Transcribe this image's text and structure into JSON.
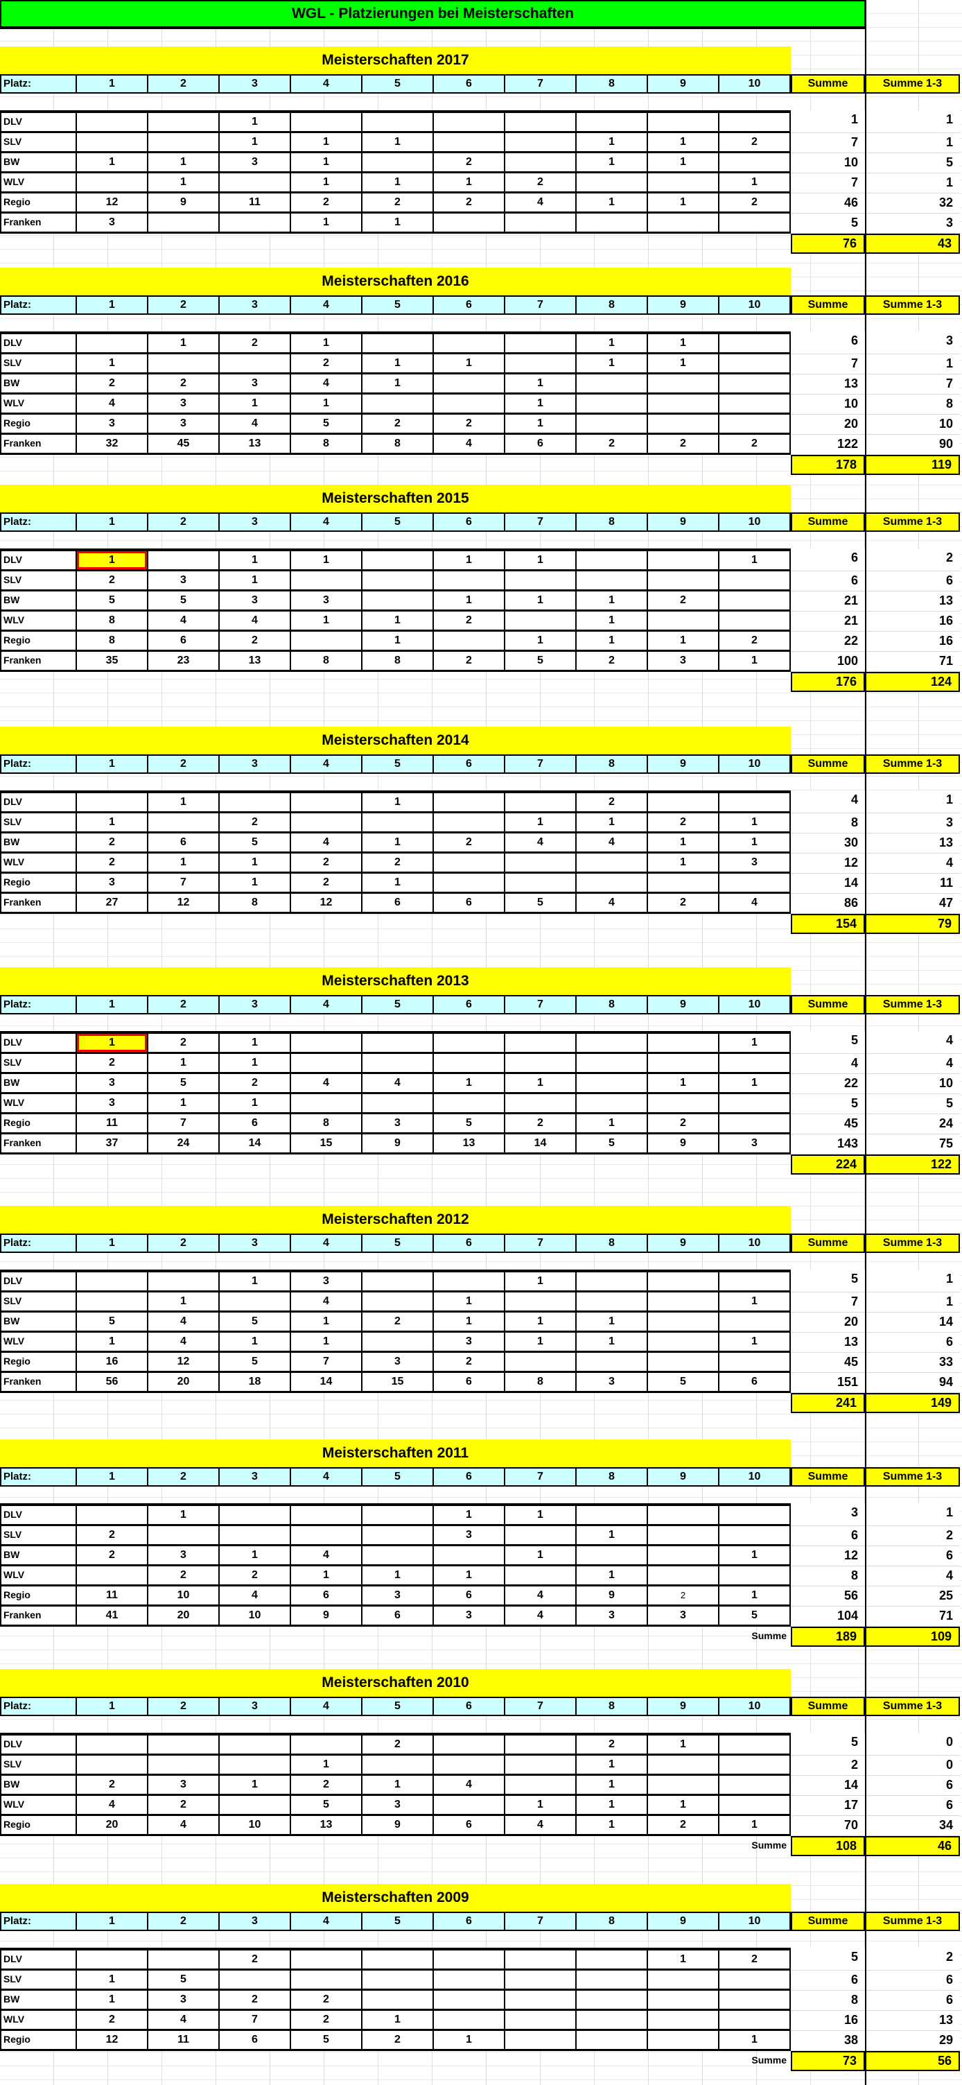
{
  "title": "WGL - Platzierungen bei Meisterschaften",
  "colors": {
    "title_green": "#00ff00",
    "banner_yellow": "#ffff00",
    "header_cyan": "#ccffff",
    "highlight_yellow": "#ffff00",
    "highlight_red": "#ff0000"
  },
  "header": {
    "platz_label": "Platz:",
    "places": [
      "1",
      "2",
      "3",
      "4",
      "5",
      "6",
      "7",
      "8",
      "9",
      "10"
    ],
    "summe_label": "Summe",
    "summe13_label": "Summe 1-3"
  },
  "tables": [
    {
      "year_title": "Meisterschaften 2017",
      "rows": [
        {
          "label": "DLV",
          "places": [
            "",
            "",
            "1",
            "",
            "",
            "",
            "",
            "",
            "",
            ""
          ],
          "summe": "1",
          "summe13": "1"
        },
        {
          "label": "SLV",
          "places": [
            "",
            "",
            "1",
            "1",
            "1",
            "",
            "",
            "1",
            "1",
            "2"
          ],
          "summe": "7",
          "summe13": "1"
        },
        {
          "label": "BW",
          "places": [
            "1",
            "1",
            "3",
            "1",
            "",
            "2",
            "",
            "1",
            "1",
            ""
          ],
          "summe": "10",
          "summe13": "5"
        },
        {
          "label": "WLV",
          "places": [
            "",
            "1",
            "",
            "1",
            "1",
            "1",
            "2",
            "",
            "",
            "1"
          ],
          "summe": "7",
          "summe13": "1"
        },
        {
          "label": "Regio",
          "places": [
            "12",
            "9",
            "11",
            "2",
            "2",
            "2",
            "4",
            "1",
            "1",
            "2"
          ],
          "summe": "46",
          "summe13": "32"
        },
        {
          "label": "Franken",
          "places": [
            "3",
            "",
            "",
            "1",
            "1",
            "",
            "",
            "",
            "",
            ""
          ],
          "summe": "5",
          "summe13": "3"
        }
      ],
      "total": {
        "label": "",
        "summe": "76",
        "summe13": "43"
      }
    },
    {
      "year_title": "Meisterschaften 2016",
      "rows": [
        {
          "label": "DLV",
          "places": [
            "",
            "1",
            "2",
            "1",
            "",
            "",
            "",
            "1",
            "1",
            ""
          ],
          "summe": "6",
          "summe13": "3"
        },
        {
          "label": "SLV",
          "places": [
            "1",
            "",
            "",
            "2",
            "1",
            "1",
            "",
            "1",
            "1",
            ""
          ],
          "summe": "7",
          "summe13": "1"
        },
        {
          "label": "BW",
          "places": [
            "2",
            "2",
            "3",
            "4",
            "1",
            "",
            "1",
            "",
            "",
            ""
          ],
          "summe": "13",
          "summe13": "7"
        },
        {
          "label": "WLV",
          "places": [
            "4",
            "3",
            "1",
            "1",
            "",
            "",
            "1",
            "",
            "",
            ""
          ],
          "summe": "10",
          "summe13": "8"
        },
        {
          "label": "Regio",
          "places": [
            "3",
            "3",
            "4",
            "5",
            "2",
            "2",
            "1",
            "",
            "",
            ""
          ],
          "summe": "20",
          "summe13": "10"
        },
        {
          "label": "Franken",
          "places": [
            "32",
            "45",
            "13",
            "8",
            "8",
            "4",
            "6",
            "2",
            "2",
            "2"
          ],
          "summe": "122",
          "summe13": "90"
        }
      ],
      "total": {
        "label": "",
        "summe": "178",
        "summe13": "119"
      }
    },
    {
      "year_title": "Meisterschaften 2015",
      "highlight_cells": [
        {
          "row": 0,
          "col": 0
        }
      ],
      "rows": [
        {
          "label": "DLV",
          "places": [
            "1",
            "",
            "1",
            "1",
            "",
            "1",
            "1",
            "",
            "",
            "1"
          ],
          "summe": "6",
          "summe13": "2"
        },
        {
          "label": "SLV",
          "places": [
            "2",
            "3",
            "1",
            "",
            "",
            "",
            "",
            "",
            "",
            ""
          ],
          "summe": "6",
          "summe13": "6"
        },
        {
          "label": "BW",
          "places": [
            "5",
            "5",
            "3",
            "3",
            "",
            "1",
            "1",
            "1",
            "2",
            ""
          ],
          "summe": "21",
          "summe13": "13"
        },
        {
          "label": "WLV",
          "places": [
            "8",
            "4",
            "4",
            "1",
            "1",
            "2",
            "",
            "1",
            "",
            ""
          ],
          "summe": "21",
          "summe13": "16"
        },
        {
          "label": "Regio",
          "places": [
            "8",
            "6",
            "2",
            "",
            "1",
            "",
            "1",
            "1",
            "1",
            "2"
          ],
          "summe": "22",
          "summe13": "16"
        },
        {
          "label": "Franken",
          "places": [
            "35",
            "23",
            "13",
            "8",
            "8",
            "2",
            "5",
            "2",
            "3",
            "1"
          ],
          "summe": "100",
          "summe13": "71"
        }
      ],
      "total": {
        "label": "",
        "summe": "176",
        "summe13": "124"
      }
    },
    {
      "year_title": "Meisterschaften 2014",
      "rows": [
        {
          "label": "DLV",
          "places": [
            "",
            "1",
            "",
            "",
            "1",
            "",
            "",
            "2",
            "",
            ""
          ],
          "summe": "4",
          "summe13": "1"
        },
        {
          "label": "SLV",
          "places": [
            "1",
            "",
            "2",
            "",
            "",
            "",
            "1",
            "1",
            "2",
            "1"
          ],
          "summe": "8",
          "summe13": "3"
        },
        {
          "label": "BW",
          "places": [
            "2",
            "6",
            "5",
            "4",
            "1",
            "2",
            "4",
            "4",
            "1",
            "1"
          ],
          "summe": "30",
          "summe13": "13"
        },
        {
          "label": "WLV",
          "places": [
            "2",
            "1",
            "1",
            "2",
            "2",
            "",
            "",
            "",
            "1",
            "3"
          ],
          "summe": "12",
          "summe13": "4"
        },
        {
          "label": "Regio",
          "places": [
            "3",
            "7",
            "1",
            "2",
            "1",
            "",
            "",
            "",
            "",
            ""
          ],
          "summe": "14",
          "summe13": "11"
        },
        {
          "label": "Franken",
          "places": [
            "27",
            "12",
            "8",
            "12",
            "6",
            "6",
            "5",
            "4",
            "2",
            "4"
          ],
          "summe": "86",
          "summe13": "47"
        }
      ],
      "total": {
        "label": "",
        "summe": "154",
        "summe13": "79"
      }
    },
    {
      "year_title": "Meisterschaften 2013",
      "highlight_cells": [
        {
          "row": 0,
          "col": 0
        }
      ],
      "rows": [
        {
          "label": "DLV",
          "places": [
            "1",
            "2",
            "1",
            "",
            "",
            "",
            "",
            "",
            "",
            "1"
          ],
          "summe": "5",
          "summe13": "4"
        },
        {
          "label": "SLV",
          "places": [
            "2",
            "1",
            "1",
            "",
            "",
            "",
            "",
            "",
            "",
            ""
          ],
          "summe": "4",
          "summe13": "4"
        },
        {
          "label": "BW",
          "places": [
            "3",
            "5",
            "2",
            "4",
            "4",
            "1",
            "1",
            "",
            "1",
            "1"
          ],
          "summe": "22",
          "summe13": "10"
        },
        {
          "label": "WLV",
          "places": [
            "3",
            "1",
            "1",
            "",
            "",
            "",
            "",
            "",
            "",
            ""
          ],
          "summe": "5",
          "summe13": "5"
        },
        {
          "label": "Regio",
          "places": [
            "11",
            "7",
            "6",
            "8",
            "3",
            "5",
            "2",
            "1",
            "2",
            ""
          ],
          "summe": "45",
          "summe13": "24"
        },
        {
          "label": "Franken",
          "places": [
            "37",
            "24",
            "14",
            "15",
            "9",
            "13",
            "14",
            "5",
            "9",
            "3"
          ],
          "summe": "143",
          "summe13": "75"
        }
      ],
      "total": {
        "label": "",
        "summe": "224",
        "summe13": "122"
      }
    },
    {
      "year_title": "Meisterschaften 2012",
      "rows": [
        {
          "label": "DLV",
          "places": [
            "",
            "",
            "1",
            "3",
            "",
            "",
            "1",
            "",
            "",
            ""
          ],
          "summe": "5",
          "summe13": "1"
        },
        {
          "label": "SLV",
          "places": [
            "",
            "1",
            "",
            "4",
            "",
            "1",
            "",
            "",
            "",
            "1"
          ],
          "summe": "7",
          "summe13": "1"
        },
        {
          "label": "BW",
          "places": [
            "5",
            "4",
            "5",
            "1",
            "2",
            "1",
            "1",
            "1",
            "",
            ""
          ],
          "summe": "20",
          "summe13": "14"
        },
        {
          "label": "WLV",
          "places": [
            "1",
            "4",
            "1",
            "1",
            "",
            "3",
            "1",
            "1",
            "",
            "1"
          ],
          "summe": "13",
          "summe13": "6"
        },
        {
          "label": "Regio",
          "places": [
            "16",
            "12",
            "5",
            "7",
            "3",
            "2",
            "",
            "",
            "",
            ""
          ],
          "summe": "45",
          "summe13": "33"
        },
        {
          "label": "Franken",
          "places": [
            "56",
            "20",
            "18",
            "14",
            "15",
            "6",
            "8",
            "3",
            "5",
            "6"
          ],
          "summe": "151",
          "summe13": "94"
        }
      ],
      "total": {
        "label": "",
        "summe": "241",
        "summe13": "149"
      }
    },
    {
      "year_title": "Meisterschaften 2011",
      "small_cells": [
        {
          "row": 4,
          "col": 8
        }
      ],
      "rows": [
        {
          "label": "DLV",
          "places": [
            "",
            "1",
            "",
            "",
            "",
            "1",
            "1",
            "",
            "",
            ""
          ],
          "summe": "3",
          "summe13": "1"
        },
        {
          "label": "SLV",
          "places": [
            "2",
            "",
            "",
            "",
            "",
            "3",
            "",
            "1",
            "",
            ""
          ],
          "summe": "6",
          "summe13": "2"
        },
        {
          "label": "BW",
          "places": [
            "2",
            "3",
            "1",
            "4",
            "",
            "",
            "1",
            "",
            "",
            "1"
          ],
          "summe": "12",
          "summe13": "6"
        },
        {
          "label": "WLV",
          "places": [
            "",
            "2",
            "2",
            "1",
            "1",
            "1",
            "",
            "1",
            "",
            ""
          ],
          "summe": "8",
          "summe13": "4"
        },
        {
          "label": "Regio",
          "places": [
            "11",
            "10",
            "4",
            "6",
            "3",
            "6",
            "4",
            "9",
            "2",
            "1"
          ],
          "summe": "56",
          "summe13": "25"
        },
        {
          "label": "Franken",
          "places": [
            "41",
            "20",
            "10",
            "9",
            "6",
            "3",
            "4",
            "3",
            "3",
            "5"
          ],
          "summe": "104",
          "summe13": "71"
        }
      ],
      "total": {
        "label": "Summe",
        "summe": "189",
        "summe13": "109"
      }
    },
    {
      "year_title": "Meisterschaften 2010",
      "rows": [
        {
          "label": "DLV",
          "places": [
            "",
            "",
            "",
            "",
            "2",
            "",
            "",
            "2",
            "1",
            ""
          ],
          "summe": "5",
          "summe13": "0"
        },
        {
          "label": "SLV",
          "places": [
            "",
            "",
            "",
            "1",
            "",
            "",
            "",
            "1",
            "",
            ""
          ],
          "summe": "2",
          "summe13": "0"
        },
        {
          "label": "BW",
          "places": [
            "2",
            "3",
            "1",
            "2",
            "1",
            "4",
            "",
            "1",
            "",
            ""
          ],
          "summe": "14",
          "summe13": "6"
        },
        {
          "label": "WLV",
          "places": [
            "4",
            "2",
            "",
            "5",
            "3",
            "",
            "1",
            "1",
            "1",
            ""
          ],
          "summe": "17",
          "summe13": "6"
        },
        {
          "label": "Regio",
          "places": [
            "20",
            "4",
            "10",
            "13",
            "9",
            "6",
            "4",
            "1",
            "2",
            "1"
          ],
          "summe": "70",
          "summe13": "34"
        }
      ],
      "total": {
        "label": "Summe",
        "summe": "108",
        "summe13": "46"
      }
    },
    {
      "year_title": "Meisterschaften 2009",
      "rows": [
        {
          "label": "DLV",
          "places": [
            "",
            "",
            "2",
            "",
            "",
            "",
            "",
            "",
            "1",
            "2"
          ],
          "summe": "5",
          "summe13": "2"
        },
        {
          "label": "SLV",
          "places": [
            "1",
            "5",
            "",
            "",
            "",
            "",
            "",
            "",
            "",
            ""
          ],
          "summe": "6",
          "summe13": "6"
        },
        {
          "label": "BW",
          "places": [
            "1",
            "3",
            "2",
            "2",
            "",
            "",
            "",
            "",
            "",
            ""
          ],
          "summe": "8",
          "summe13": "6"
        },
        {
          "label": "WLV",
          "places": [
            "2",
            "4",
            "7",
            "2",
            "1",
            "",
            "",
            "",
            "",
            ""
          ],
          "summe": "16",
          "summe13": "13"
        },
        {
          "label": "Regio",
          "places": [
            "12",
            "11",
            "6",
            "5",
            "2",
            "1",
            "",
            "",
            "",
            "1"
          ],
          "summe": "38",
          "summe13": "29"
        }
      ],
      "total": {
        "label": "Summe",
        "summe": "73",
        "summe13": "56"
      }
    }
  ]
}
